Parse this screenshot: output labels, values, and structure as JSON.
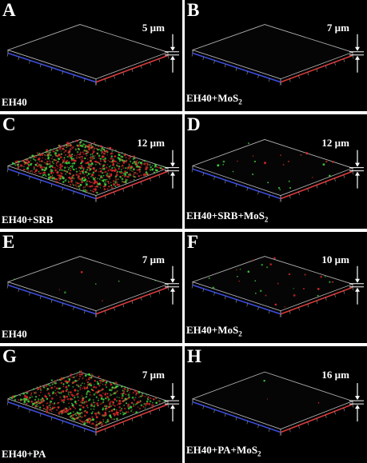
{
  "panels": [
    {
      "letter": "A",
      "caption": "EH40",
      "sub": "",
      "thickness": "5 µm",
      "cells": "none",
      "density": 0
    },
    {
      "letter": "B",
      "caption": "EH40+MoS",
      "sub": "2",
      "thickness": "7 µm",
      "cells": "none",
      "density": 0
    },
    {
      "letter": "C",
      "caption": "EH40+SRB",
      "sub": "",
      "thickness": "12 µm",
      "cells": "dense",
      "density": 900
    },
    {
      "letter": "D",
      "caption": "EH40+SRB+MoS",
      "sub": "2",
      "thickness": "12 µm",
      "cells": "sparse",
      "density": 25
    },
    {
      "letter": "E",
      "caption": "EH40",
      "sub": "",
      "thickness": "7 µm",
      "cells": "sparse",
      "density": 8
    },
    {
      "letter": "F",
      "caption": "EH40+MoS",
      "sub": "2",
      "thickness": "10 µm",
      "cells": "sparse",
      "density": 30
    },
    {
      "letter": "G",
      "caption": "EH40+PA",
      "sub": "",
      "thickness": "7 µm",
      "cells": "dense",
      "density": 700
    },
    {
      "letter": "H",
      "caption": "EH40+PA+MoS",
      "sub": "2",
      "thickness": "16 µm",
      "cells": "none",
      "density": 3
    }
  ],
  "colors": {
    "x_axis": "#3b4bd8",
    "y_axis": "#d83a3a",
    "box": "#bcbcbc",
    "live": "#3fd43f",
    "dead": "#e02a2a"
  }
}
